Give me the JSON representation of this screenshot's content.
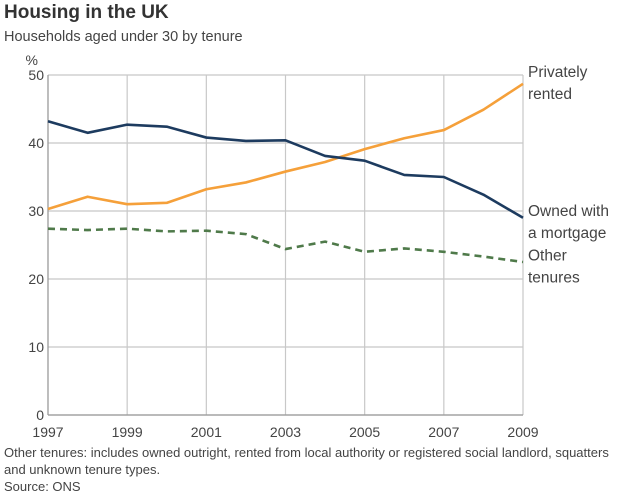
{
  "chart_data": {
    "type": "line",
    "title": "Housing in the UK",
    "subtitle": "Households aged under 30 by tenure",
    "ylabel": "%",
    "xlabel": "",
    "ylim": [
      0,
      50
    ],
    "yticks": [
      0,
      10,
      20,
      30,
      40,
      50
    ],
    "xlim": [
      1997,
      2009
    ],
    "xticks": [
      1997,
      1999,
      2001,
      2003,
      2005,
      2007,
      2009
    ],
    "grid": true,
    "x": [
      1997,
      1998,
      1999,
      2000,
      2001,
      2002,
      2003,
      2004,
      2005,
      2006,
      2007,
      2008,
      2009
    ],
    "series": [
      {
        "name": "Privately rented",
        "label_lines": [
          "Privately",
          "rented"
        ],
        "color": "#f5a03a",
        "dash": false,
        "values": [
          30.3,
          32.1,
          31.0,
          31.2,
          33.2,
          34.2,
          35.8,
          37.2,
          39.1,
          40.7,
          41.9,
          44.9,
          48.7
        ]
      },
      {
        "name": "Owned with a mortgage",
        "label_lines": [
          "Owned with",
          "a mortgage"
        ],
        "color": "#1d3b5f",
        "dash": false,
        "values": [
          43.2,
          41.5,
          42.7,
          42.4,
          40.8,
          40.3,
          40.4,
          38.1,
          37.4,
          35.3,
          35.0,
          32.4,
          29.0
        ]
      },
      {
        "name": "Other tenures",
        "label_lines": [
          "Other",
          "tenures"
        ],
        "color": "#4f7a4a",
        "dash": true,
        "values": [
          27.4,
          27.2,
          27.4,
          27.0,
          27.1,
          26.6,
          24.4,
          25.5,
          24.0,
          24.5,
          24.0,
          23.3,
          22.5
        ]
      }
    ]
  },
  "notes": {
    "footnote": "Other tenures: includes owned outright, rented from local authority or registered social landlord, squatters and unknown tenure types.",
    "source": "Source: ONS"
  }
}
